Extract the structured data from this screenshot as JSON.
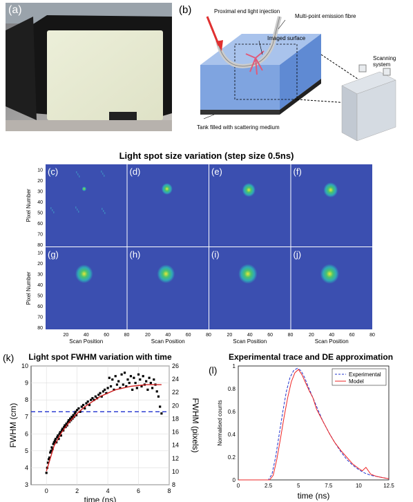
{
  "photo": {
    "label": "(a)"
  },
  "schematic": {
    "label": "(b)",
    "annotations": {
      "injection": "Proximal end light injection",
      "fibre": "Multi-point emission fibre",
      "surface": "Imaged surface",
      "scanner": "Scanning system",
      "tank": "Tank filled with scattering medium"
    }
  },
  "heatmaps": {
    "title": "Light spot size variation (step size 0.5ns)",
    "ylabel": "Pixel Number",
    "xlabel": "Scan Position",
    "y_ticks": [
      "10",
      "20",
      "30",
      "40",
      "50",
      "60",
      "70",
      "80"
    ],
    "x_ticks": [
      "20",
      "40",
      "60",
      "80"
    ],
    "panels": [
      {
        "label": "(c)",
        "spot_x": 38,
        "spot_y": 28,
        "spot_r": 2
      },
      {
        "label": "(d)",
        "spot_x": 39,
        "spot_y": 28,
        "spot_r": 5
      },
      {
        "label": "(e)",
        "spot_x": 39,
        "spot_y": 29,
        "spot_r": 6
      },
      {
        "label": "(f)",
        "spot_x": 39,
        "spot_y": 29,
        "spot_r": 6.5
      },
      {
        "label": "(g)",
        "spot_x": 38,
        "spot_y": 30,
        "spot_r": 8
      },
      {
        "label": "(h)",
        "spot_x": 38,
        "spot_y": 30,
        "spot_r": 8
      },
      {
        "label": "(i)",
        "spot_x": 38,
        "spot_y": 30,
        "spot_r": 8.5
      },
      {
        "label": "(j)",
        "spot_x": 38,
        "spot_y": 30,
        "spot_r": 8.5
      }
    ],
    "colors": {
      "background": "#3b4fb0",
      "edge": "#2fa8b8",
      "mid": "#4ac36e",
      "core": "#e8e83a"
    }
  },
  "chart_data": [
    {
      "type": "scatter",
      "panel_label": "(k)",
      "title": "Light spot FWHM variation with time",
      "xlabel": "time (ns)",
      "ylabel": "FWHM (cm)",
      "y2label": "FWHM (pixels)",
      "xlim": [
        -1,
        8
      ],
      "ylim": [
        3,
        10
      ],
      "y2lim": [
        8,
        26
      ],
      "x_ticks": [
        "0",
        "2",
        "4",
        "6",
        "8"
      ],
      "y_ticks": [
        "3",
        "4",
        "5",
        "6",
        "7",
        "8",
        "9",
        "10"
      ],
      "y2_ticks": [
        "8",
        "10",
        "12",
        "14",
        "16",
        "18",
        "20",
        "22",
        "24",
        "26"
      ],
      "threshold": 7.3,
      "grid": true,
      "series": [
        {
          "name": "",
          "kind": "points",
          "x": [
            0,
            0.05,
            0.1,
            0.15,
            0.2,
            0.25,
            0.3,
            0.35,
            0.4,
            0.45,
            0.5,
            0.55,
            0.6,
            0.65,
            0.7,
            0.75,
            0.8,
            0.85,
            0.9,
            0.95,
            1.0,
            1.05,
            1.1,
            1.15,
            1.2,
            1.25,
            1.3,
            1.35,
            1.4,
            1.45,
            1.5,
            1.55,
            1.6,
            1.65,
            1.7,
            1.75,
            1.8,
            1.85,
            1.9,
            1.95,
            2.0,
            2.1,
            2.2,
            2.3,
            2.4,
            2.5,
            2.6,
            2.7,
            2.8,
            2.9,
            3.0,
            3.1,
            3.2,
            3.3,
            3.4,
            3.5,
            3.6,
            3.7,
            3.8,
            3.9,
            4.0,
            4.1,
            4.2,
            4.3,
            4.4,
            4.5,
            4.6,
            4.7,
            4.8,
            4.9,
            5.0,
            5.1,
            5.2,
            5.3,
            5.4,
            5.5,
            5.6,
            5.7,
            5.8,
            5.9,
            6.0,
            6.1,
            6.2,
            6.3,
            6.4,
            6.5,
            6.6,
            6.7,
            6.8,
            6.9,
            7.0,
            7.1,
            7.2,
            7.3,
            7.4,
            7.5
          ],
          "y": [
            3.7,
            4.0,
            4.3,
            4.5,
            4.6,
            4.9,
            5.0,
            5.2,
            5.1,
            5.4,
            5.5,
            5.6,
            5.7,
            5.5,
            5.8,
            5.9,
            5.7,
            6.0,
            6.1,
            5.9,
            6.2,
            6.3,
            6.2,
            6.4,
            6.5,
            6.4,
            6.6,
            6.5,
            6.7,
            6.8,
            6.7,
            6.9,
            6.8,
            7.0,
            6.9,
            7.1,
            7.0,
            7.2,
            7.3,
            7.1,
            7.4,
            7.5,
            7.3,
            7.6,
            7.7,
            7.5,
            7.8,
            7.9,
            7.7,
            8.0,
            8.1,
            8.0,
            8.2,
            8.1,
            8.3,
            8.4,
            8.2,
            8.5,
            8.6,
            8.4,
            8.7,
            9.3,
            8.8,
            9.2,
            8.6,
            9.4,
            8.9,
            9.1,
            8.7,
            9.5,
            8.9,
            9.6,
            8.8,
            9.2,
            9.0,
            9.4,
            8.6,
            9.3,
            9.0,
            8.7,
            9.5,
            9.2,
            8.8,
            9.4,
            8.9,
            9.1,
            8.6,
            9.3,
            9.0,
            8.7,
            9.2,
            8.9,
            8.5,
            8.2,
            7.6,
            7.2
          ]
        },
        {
          "name": "",
          "kind": "fit",
          "x": [
            0,
            0.5,
            1,
            1.5,
            2,
            2.5,
            3,
            3.5,
            4,
            4.5,
            5,
            5.5,
            6,
            6.5,
            7,
            7.5
          ],
          "y": [
            3.8,
            5.3,
            6.1,
            6.7,
            7.2,
            7.6,
            7.9,
            8.2,
            8.4,
            8.6,
            8.7,
            8.8,
            8.85,
            8.9,
            8.9,
            8.9
          ]
        }
      ]
    },
    {
      "type": "line",
      "panel_label": "(l)",
      "title": "Experimental trace and DE approximation",
      "xlabel": "time (ns)",
      "ylabel": "Normalised counts",
      "xlim": [
        0,
        12.5
      ],
      "ylim": [
        0,
        1
      ],
      "x_ticks": [
        "0",
        "2.5",
        "5",
        "7.5",
        "10",
        "12.5"
      ],
      "y_ticks": [
        "0",
        "0.2",
        "0.4",
        "0.6",
        "0.8",
        "1"
      ],
      "legend_position": "top-right",
      "series": [
        {
          "name": "Experimental",
          "color": "#2233cc",
          "dash": true,
          "x": [
            0,
            2.5,
            2.8,
            3.1,
            3.4,
            3.7,
            4.0,
            4.3,
            4.6,
            4.9,
            5.2,
            5.5,
            5.8,
            6.2,
            6.6,
            7.0,
            7.5,
            8.0,
            8.5,
            9.0,
            9.5,
            10,
            10.5,
            11,
            11.5,
            12,
            12.5
          ],
          "y": [
            0,
            0,
            0.05,
            0.2,
            0.4,
            0.6,
            0.78,
            0.9,
            0.96,
            0.98,
            0.96,
            0.9,
            0.82,
            0.72,
            0.62,
            0.52,
            0.42,
            0.33,
            0.25,
            0.18,
            0.13,
            0.09,
            0.06,
            0.04,
            0.03,
            0.02,
            0.01
          ]
        },
        {
          "name": "Model",
          "color": "#ee2222",
          "dash": false,
          "x": [
            0,
            2.6,
            2.9,
            3.2,
            3.5,
            3.8,
            4.1,
            4.4,
            4.7,
            5.0,
            5.3,
            5.6,
            5.9,
            6.2,
            6.5,
            6.8,
            7.2,
            7.6,
            8.0,
            8.5,
            9.0,
            9.5,
            10,
            10.3,
            10.6,
            11,
            11.5,
            12,
            12.5
          ],
          "y": [
            0,
            0,
            0.04,
            0.18,
            0.36,
            0.55,
            0.72,
            0.86,
            0.94,
            0.97,
            0.92,
            0.85,
            0.78,
            0.72,
            0.62,
            0.56,
            0.48,
            0.4,
            0.33,
            0.26,
            0.2,
            0.14,
            0.1,
            0.08,
            0.11,
            0.05,
            0.03,
            0.02,
            0.01
          ]
        }
      ]
    }
  ]
}
